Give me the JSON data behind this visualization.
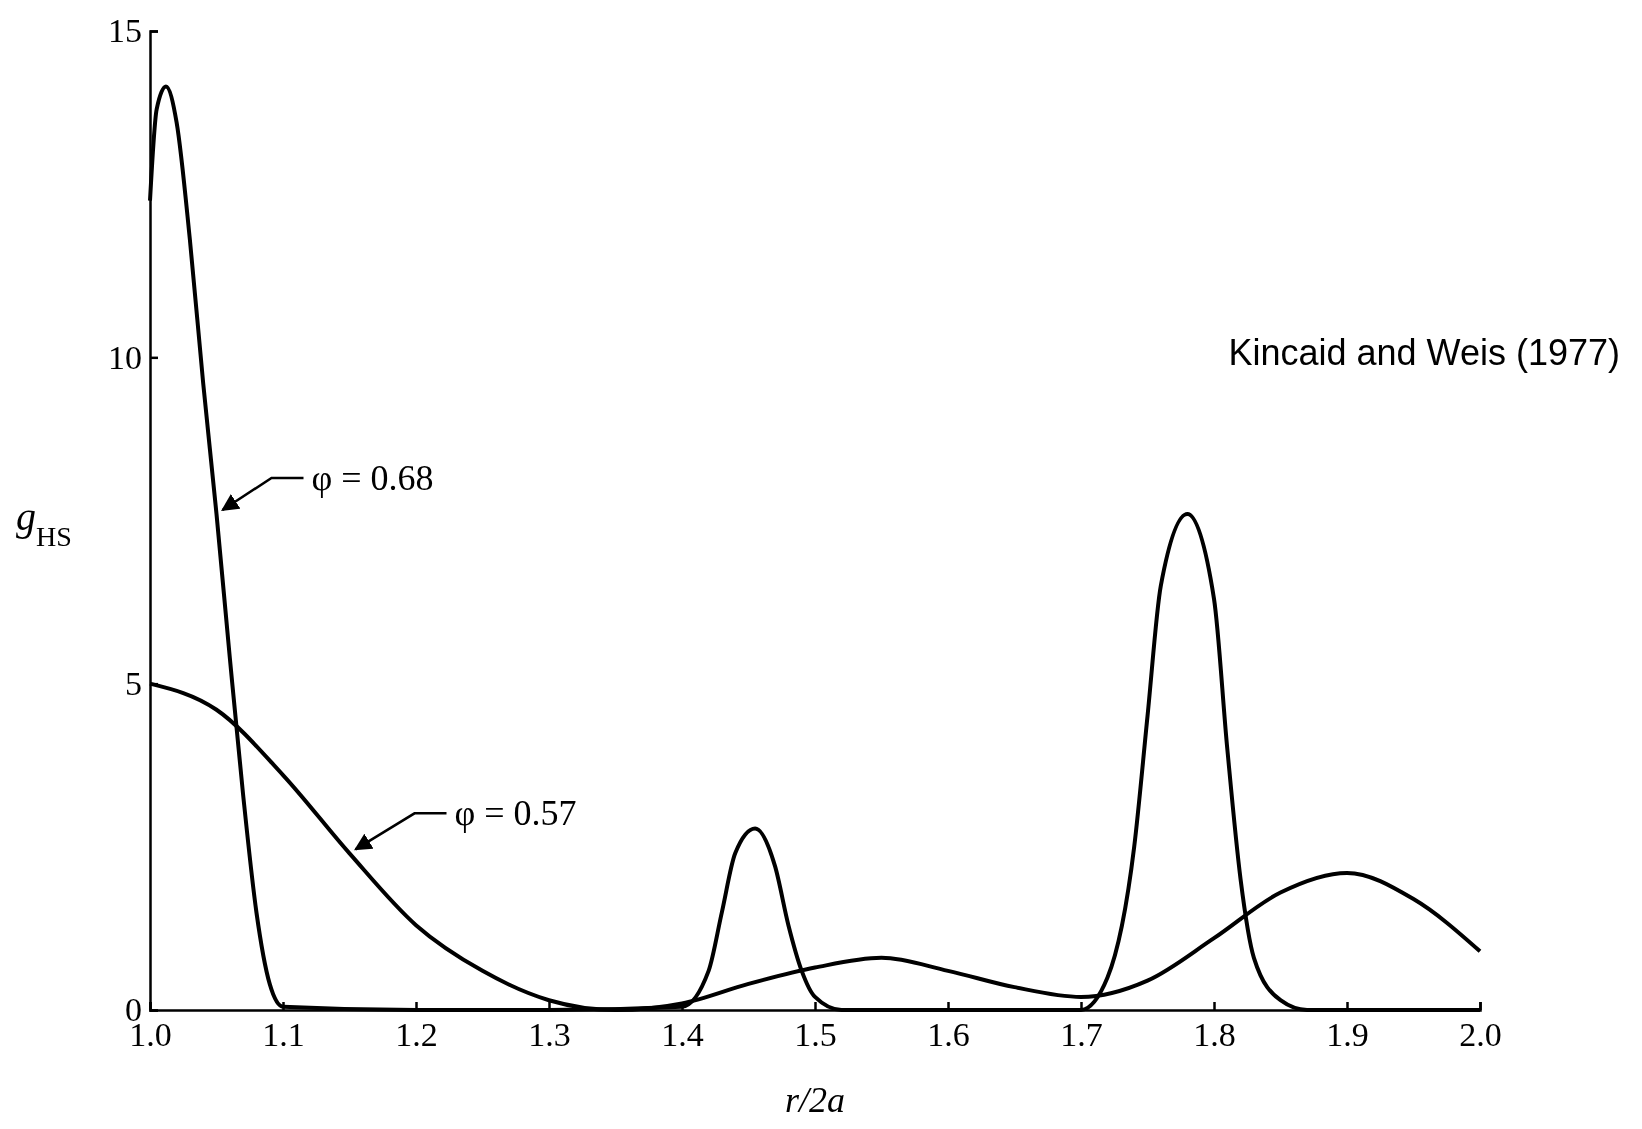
{
  "chart_data": {
    "type": "line",
    "xlabel": "r/2a",
    "ylabel": "g$_{HS}$",
    "xlim": [
      1.0,
      2.0
    ],
    "ylim": [
      0,
      15
    ],
    "xticks": [
      {
        "value": 1.0,
        "label": "1.0"
      },
      1.1,
      1.2,
      1.3,
      1.4,
      1.5,
      1.6,
      1.7,
      1.8,
      1.9,
      {
        "value": 2.0,
        "label": "2.0"
      }
    ],
    "yticks": [
      0,
      5,
      10,
      15
    ],
    "grid": false,
    "legend": "left",
    "marker": "none",
    "line_style": "solid",
    "series": [
      {
        "name": "φ = 0.68",
        "color": "#000000",
        "x": [
          1.0,
          1.005,
          1.012,
          1.02,
          1.03,
          1.04,
          1.05,
          1.06,
          1.07,
          1.08,
          1.09,
          1.1,
          1.2,
          1.3,
          1.4,
          1.42,
          1.43,
          1.44,
          1.455,
          1.47,
          1.48,
          1.49,
          1.5,
          1.52,
          1.6,
          1.7,
          1.72,
          1.74,
          1.75,
          1.76,
          1.78,
          1.8,
          1.81,
          1.82,
          1.83,
          1.85,
          1.87,
          1.9,
          2.0
        ],
        "values": [
          12.4,
          13.8,
          14.15,
          13.6,
          11.8,
          9.6,
          7.6,
          5.4,
          3.3,
          1.5,
          0.4,
          0.05,
          0,
          0,
          0.05,
          0.6,
          1.5,
          2.4,
          2.78,
          2.2,
          1.3,
          0.6,
          0.2,
          0,
          0,
          0,
          0.5,
          2.5,
          4.5,
          6.5,
          7.6,
          6.3,
          4,
          2,
          0.8,
          0.15,
          0,
          0,
          0
        ]
      },
      {
        "name": "φ = 0.57",
        "color": "#000000",
        "x": [
          1.0,
          1.05,
          1.1,
          1.15,
          1.2,
          1.25,
          1.3,
          1.35,
          1.4,
          1.45,
          1.5,
          1.55,
          1.6,
          1.65,
          1.7,
          1.75,
          1.8,
          1.85,
          1.9,
          1.95,
          2.0
        ],
        "values": [
          5.0,
          4.6,
          3.6,
          2.4,
          1.3,
          0.6,
          0.15,
          0.0,
          0.1,
          0.4,
          0.65,
          0.8,
          0.6,
          0.35,
          0.2,
          0.45,
          1.1,
          1.8,
          2.1,
          1.7,
          0.9
        ]
      }
    ],
    "annotations": [
      "Kincaid and Weis (1977)"
    ]
  }
}
